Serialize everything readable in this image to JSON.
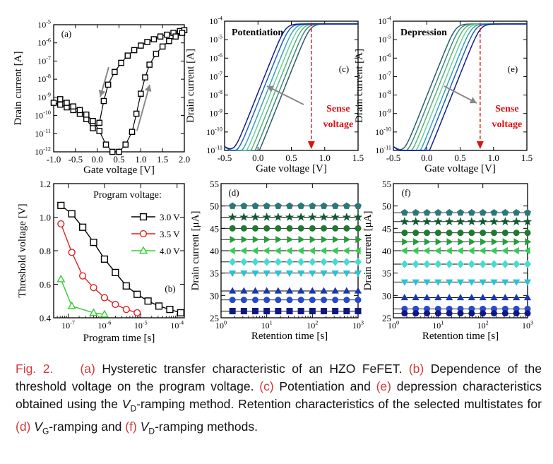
{
  "chart_data": [
    {
      "id": "a",
      "type": "line",
      "panel_label": "(a)",
      "xlabel": "Gate voltage [V]",
      "ylabel": "Drain current [A]",
      "xlim": [
        -1.0,
        2.0
      ],
      "ylim_log10": [
        -12,
        -5
      ],
      "xticks": [
        "-1.0",
        "-0.5",
        "0.0",
        "0.5",
        "1.0",
        "1.5",
        "2.0"
      ],
      "yticks": [
        "10^-12",
        "10^-11",
        "10^-10",
        "10^-9",
        "10^-8",
        "10^-7",
        "10^-6",
        "10^-5"
      ],
      "series": [
        {
          "marker": "square",
          "log_y": true,
          "x": [
            -1.0,
            -0.85,
            -0.7,
            -0.55,
            -0.4,
            -0.25,
            -0.1,
            0.05,
            0.15,
            0.25,
            0.4,
            0.55,
            0.7,
            0.85,
            1.0,
            1.15,
            1.3,
            1.45,
            1.6,
            1.75,
            1.9,
            2.0
          ],
          "y": [
            -9.3,
            -9.4,
            -9.55,
            -9.7,
            -9.9,
            -10.2,
            -10.7,
            -10.4,
            -9.2,
            -8.3,
            -7.6,
            -7.1,
            -6.7,
            -6.4,
            -6.15,
            -5.95,
            -5.8,
            -5.65,
            -5.55,
            -5.45,
            -5.35,
            -5.3
          ]
        },
        {
          "marker": "square",
          "log_y": true,
          "x": [
            -0.85,
            -0.7,
            -0.55,
            -0.4,
            -0.25,
            -0.1,
            0.05,
            0.2,
            0.35,
            0.5,
            0.65,
            0.8,
            0.9,
            1.0,
            1.1,
            1.2,
            1.35,
            1.5,
            1.65,
            1.8,
            1.95
          ],
          "y": [
            -9.1,
            -9.3,
            -9.5,
            -9.7,
            -9.95,
            -10.3,
            -10.85,
            -11.6,
            -12.0,
            -12.0,
            -11.6,
            -10.9,
            -9.9,
            -8.8,
            -7.9,
            -7.2,
            -6.6,
            -6.2,
            -5.9,
            -5.65,
            -5.45
          ]
        }
      ]
    },
    {
      "id": "b",
      "type": "line",
      "panel_label": "(b)",
      "xlabel": "Program time [s]",
      "ylabel": "Threshold voltage [V]",
      "legend_title": "Program voltage:",
      "legend_position": "top-right",
      "xlim_log10": [
        -7.4,
        -3.8
      ],
      "ylim": [
        0.4,
        1.2
      ],
      "xticks": [
        "10^-7",
        "10^-6",
        "10^-5",
        "10^-4"
      ],
      "yticks": [
        "0.4",
        "0.6",
        "0.8",
        "1.0",
        "1.2"
      ],
      "series": [
        {
          "name": "3.0 V",
          "color": "#000000",
          "marker": "square",
          "x_log10": [
            -7.2,
            -6.9,
            -6.6,
            -6.3,
            -6.0,
            -5.7,
            -5.4,
            -5.1,
            -4.8,
            -4.5,
            -4.2,
            -3.9
          ],
          "y": [
            1.07,
            1.02,
            0.94,
            0.85,
            0.75,
            0.67,
            0.59,
            0.54,
            0.5,
            0.47,
            0.45,
            0.43
          ]
        },
        {
          "name": "3.5 V",
          "color": "#e02020",
          "marker": "circle",
          "x_log10": [
            -7.2,
            -6.9,
            -6.6,
            -6.3,
            -6.0,
            -5.7,
            -5.4,
            -5.1
          ],
          "y": [
            0.96,
            0.79,
            0.65,
            0.58,
            0.52,
            0.48,
            0.45,
            0.43
          ]
        },
        {
          "name": "4.0 V",
          "color": "#33cc33",
          "marker": "triangle",
          "x_log10": [
            -7.2,
            -6.9,
            -6.3,
            -6.0
          ],
          "y": [
            0.63,
            0.47,
            0.43,
            0.42
          ]
        }
      ]
    },
    {
      "id": "c",
      "type": "line",
      "panel_label": "(c)",
      "title": "Potentiation",
      "xlabel": "Gate voltage [V]",
      "ylabel": "Drain current [A]",
      "xlim": [
        -0.5,
        1.5
      ],
      "ylim_log10": [
        -11,
        -4
      ],
      "xticks": [
        "-0.5",
        "0.0",
        "0.5",
        "1.0",
        "1.5"
      ],
      "yticks": [
        "10^-11",
        "10^-10",
        "10^-9",
        "10^-8",
        "10^-7",
        "10^-6",
        "10^-5",
        "10^-4"
      ],
      "sense_voltage": 0.8,
      "sense_label": [
        "Sense",
        "voltage"
      ],
      "arrow_direction": "up-left",
      "curve_colors": [
        "#2b5a6a",
        "#3e8a7a",
        "#58b080",
        "#6cd090",
        "#35a0c0",
        "#2060b0",
        "#151a90"
      ],
      "curve_vt": [
        0.53,
        0.47,
        0.41,
        0.35,
        0.29,
        0.22,
        0.16
      ]
    },
    {
      "id": "e",
      "type": "line",
      "panel_label": "(e)",
      "title": "Depression",
      "xlabel": "Gate voltage [V]",
      "ylabel": "Drain current [A]",
      "xlim": [
        -0.5,
        1.5
      ],
      "ylim_log10": [
        -11,
        -4
      ],
      "xticks": [
        "-0.5",
        "0.0",
        "0.5",
        "1.0",
        "1.5"
      ],
      "yticks": [
        "10^-11",
        "10^-10",
        "10^-9",
        "10^-8",
        "10^-7",
        "10^-6",
        "10^-5",
        "10^-4"
      ],
      "sense_voltage": 0.8,
      "sense_label": [
        "Sense",
        "voltage"
      ],
      "arrow_direction": "down-right",
      "curve_colors": [
        "#2b5a6a",
        "#3e8a7a",
        "#58b080",
        "#6cd090",
        "#35a0c0",
        "#2060b0",
        "#151a90"
      ],
      "curve_vt": [
        0.18,
        0.24,
        0.3,
        0.36,
        0.42,
        0.48,
        0.55
      ]
    },
    {
      "id": "d",
      "type": "scatter",
      "panel_label": "(d)",
      "xlabel": "Retention time [s]",
      "ylabel": "Drain current [μA]",
      "xlim_log10": [
        0,
        3
      ],
      "ylim": [
        25,
        55
      ],
      "xticks": [
        "10^0",
        "10^1",
        "10^2",
        "10^3"
      ],
      "yticks": [
        "25",
        "30",
        "35",
        "40",
        "45",
        "50",
        "55"
      ],
      "levels": [
        {
          "y": 50.0,
          "marker": "pentagon",
          "color": "#2a7878"
        },
        {
          "y": 47.5,
          "marker": "star",
          "color": "#0f5a30"
        },
        {
          "y": 45.0,
          "marker": "circle",
          "color": "#1e7a30"
        },
        {
          "y": 42.5,
          "marker": "triangle-right",
          "color": "#22a038"
        },
        {
          "y": 40.0,
          "marker": "triangle-left",
          "color": "#33cc55"
        },
        {
          "y": 37.5,
          "marker": "diamond",
          "color": "#44ddcc"
        },
        {
          "y": 35.0,
          "marker": "triangle-down",
          "color": "#22c5d5"
        },
        {
          "y": 31.0,
          "marker": "triangle-up",
          "color": "#1838b0"
        },
        {
          "y": 29.0,
          "marker": "circle",
          "color": "#2848d0"
        },
        {
          "y": 26.5,
          "marker": "square",
          "color": "#101880"
        }
      ]
    },
    {
      "id": "f",
      "type": "scatter",
      "panel_label": "(f)",
      "xlabel": "Retention time [s]",
      "ylabel": "Drain current [μA]",
      "xlim_log10": [
        0,
        3
      ],
      "ylim": [
        25,
        55
      ],
      "xticks": [
        "10^0",
        "10^1",
        "10^2",
        "10^3"
      ],
      "yticks": [
        "25",
        "30",
        "35",
        "40",
        "45",
        "50",
        "55"
      ],
      "levels": [
        {
          "y": 48.5,
          "marker": "pentagon",
          "color": "#2a7878"
        },
        {
          "y": 46.5,
          "marker": "star",
          "color": "#0f5a30"
        },
        {
          "y": 44.0,
          "marker": "circle",
          "color": "#1e7a30"
        },
        {
          "y": 42.0,
          "marker": "triangle-right",
          "color": "#22a038"
        },
        {
          "y": 40.0,
          "marker": "triangle-left",
          "color": "#33cc55"
        },
        {
          "y": 37.0,
          "marker": "diamond",
          "color": "#44ddcc"
        },
        {
          "y": 33.0,
          "marker": "triangle-down",
          "color": "#22c5d5"
        },
        {
          "y": 29.5,
          "marker": "triangle-up",
          "color": "#1838b0"
        },
        {
          "y": 27.0,
          "marker": "circle",
          "color": "#2848d0"
        },
        {
          "y": 26.0,
          "marker": "circle",
          "color": "#101880"
        }
      ]
    }
  ],
  "caption": {
    "fig": "Fig. 2.",
    "a_label": "(a)",
    "a_text": "Hysteretic transfer characteristic of an HZO FeFET.",
    "b_label": "(b)",
    "b_text": "Dependence of the threshold voltage on the program voltage.",
    "c_label": "(c)",
    "c_text": "Potentiation and",
    "e_label": "(e)",
    "e_text": "depression characteristics obtained using the",
    "vd_var": "V",
    "vd_sub": "D",
    "vd_text1": "-ramping method. Retention characteristics of the selected multistates for",
    "d_label": "(d)",
    "vg_var": "V",
    "vg_sub": "G",
    "vg_text": "-ramping and",
    "f_label": "(f)",
    "vd2_var": "V",
    "vd2_sub": "D",
    "vd2_text": "-ramping methods."
  },
  "colors": {
    "caption_accent": "#d03a3a",
    "sense_line": "#e01010",
    "arrow_gray": "#888888"
  }
}
